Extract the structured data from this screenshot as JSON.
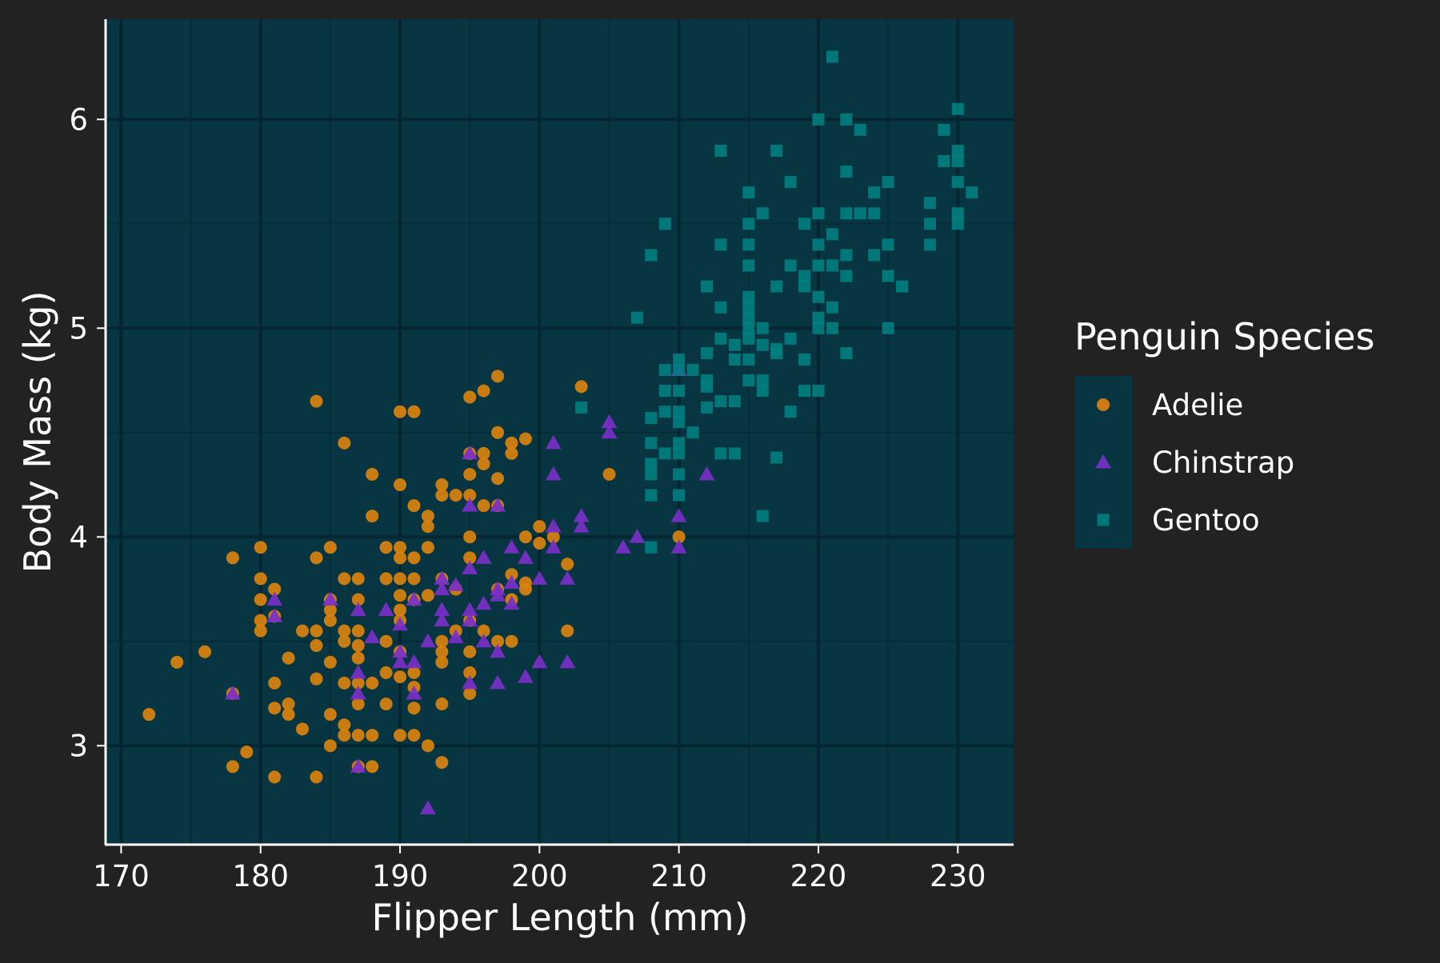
{
  "chart_data": {
    "type": "scatter",
    "xlabel": "Flipper Length (mm)",
    "ylabel": "Body Mass (kg)",
    "xlim": [
      169,
      234
    ],
    "ylim": [
      2.53,
      6.48
    ],
    "x_ticks": [
      170,
      180,
      190,
      200,
      210,
      220,
      230
    ],
    "y_ticks": [
      3,
      4,
      5,
      6
    ],
    "grid": true,
    "legend": {
      "title": "Penguin Species",
      "position": "right"
    },
    "colors": {
      "background": "#222222",
      "panel": "#073642",
      "grid_major": "#042630",
      "grid_minor": "#052c37",
      "axis": "#ffffff"
    },
    "series": [
      {
        "name": "Adelie",
        "marker": "circle",
        "color": "#d9820d",
        "points": [
          [
            172,
            3.15
          ],
          [
            174,
            3.4
          ],
          [
            176,
            3.45
          ],
          [
            178,
            3.9
          ],
          [
            178,
            2.9
          ],
          [
            178,
            3.25
          ],
          [
            179,
            2.97
          ],
          [
            180,
            3.95
          ],
          [
            180,
            3.8
          ],
          [
            180,
            3.7
          ],
          [
            180,
            3.6
          ],
          [
            180,
            3.55
          ],
          [
            181,
            3.75
          ],
          [
            181,
            3.62
          ],
          [
            181,
            3.3
          ],
          [
            181,
            3.18
          ],
          [
            181,
            2.85
          ],
          [
            182,
            3.42
          ],
          [
            182,
            3.2
          ],
          [
            182,
            3.15
          ],
          [
            183,
            3.55
          ],
          [
            183,
            3.08
          ],
          [
            184,
            4.65
          ],
          [
            184,
            3.9
          ],
          [
            184,
            3.55
          ],
          [
            184,
            3.48
          ],
          [
            184,
            3.32
          ],
          [
            184,
            2.85
          ],
          [
            185,
            3.95
          ],
          [
            185,
            3.7
          ],
          [
            185,
            3.65
          ],
          [
            185,
            3.6
          ],
          [
            185,
            3.4
          ],
          [
            185,
            3.15
          ],
          [
            185,
            3.0
          ],
          [
            186,
            4.45
          ],
          [
            186,
            3.8
          ],
          [
            186,
            3.55
          ],
          [
            186,
            3.5
          ],
          [
            186,
            3.3
          ],
          [
            186,
            3.1
          ],
          [
            186,
            3.05
          ],
          [
            187,
            3.8
          ],
          [
            187,
            3.7
          ],
          [
            187,
            3.55
          ],
          [
            187,
            3.48
          ],
          [
            187,
            3.42
          ],
          [
            187,
            3.3
          ],
          [
            187,
            3.2
          ],
          [
            187,
            3.05
          ],
          [
            187,
            2.9
          ],
          [
            188,
            4.3
          ],
          [
            188,
            4.1
          ],
          [
            188,
            3.3
          ],
          [
            188,
            3.05
          ],
          [
            188,
            2.9
          ],
          [
            189,
            3.95
          ],
          [
            189,
            3.8
          ],
          [
            189,
            3.5
          ],
          [
            189,
            3.35
          ],
          [
            189,
            3.2
          ],
          [
            190,
            4.6
          ],
          [
            190,
            4.25
          ],
          [
            190,
            3.95
          ],
          [
            190,
            3.9
          ],
          [
            190,
            3.8
          ],
          [
            190,
            3.72
          ],
          [
            190,
            3.65
          ],
          [
            190,
            3.6
          ],
          [
            190,
            3.45
          ],
          [
            190,
            3.33
          ],
          [
            190,
            3.05
          ],
          [
            191,
            4.6
          ],
          [
            191,
            4.15
          ],
          [
            191,
            3.9
          ],
          [
            191,
            3.8
          ],
          [
            191,
            3.7
          ],
          [
            191,
            3.35
          ],
          [
            191,
            3.28
          ],
          [
            191,
            3.18
          ],
          [
            191,
            3.05
          ],
          [
            192,
            4.1
          ],
          [
            192,
            4.05
          ],
          [
            192,
            3.95
          ],
          [
            192,
            3.72
          ],
          [
            192,
            3.0
          ],
          [
            193,
            4.25
          ],
          [
            193,
            4.2
          ],
          [
            193,
            3.8
          ],
          [
            193,
            3.5
          ],
          [
            193,
            3.45
          ],
          [
            193,
            3.4
          ],
          [
            193,
            3.2
          ],
          [
            193,
            2.92
          ],
          [
            194,
            4.2
          ],
          [
            194,
            3.75
          ],
          [
            194,
            3.55
          ],
          [
            195,
            4.67
          ],
          [
            195,
            4.4
          ],
          [
            195,
            4.3
          ],
          [
            195,
            4.2
          ],
          [
            195,
            4.0
          ],
          [
            195,
            3.9
          ],
          [
            195,
            3.6
          ],
          [
            195,
            3.45
          ],
          [
            195,
            3.35
          ],
          [
            195,
            3.25
          ],
          [
            196,
            4.7
          ],
          [
            196,
            4.4
          ],
          [
            196,
            4.35
          ],
          [
            196,
            4.15
          ],
          [
            196,
            3.55
          ],
          [
            197,
            4.77
          ],
          [
            197,
            4.5
          ],
          [
            197,
            4.28
          ],
          [
            197,
            4.15
          ],
          [
            197,
            3.75
          ],
          [
            197,
            3.5
          ],
          [
            198,
            4.45
          ],
          [
            198,
            4.4
          ],
          [
            198,
            3.82
          ],
          [
            198,
            3.7
          ],
          [
            198,
            3.5
          ],
          [
            199,
            4.47
          ],
          [
            199,
            4.0
          ],
          [
            199,
            3.78
          ],
          [
            199,
            3.75
          ],
          [
            200,
            4.05
          ],
          [
            200,
            3.97
          ],
          [
            201,
            4.0
          ],
          [
            202,
            3.87
          ],
          [
            202,
            3.55
          ],
          [
            203,
            4.72
          ],
          [
            205,
            4.3
          ],
          [
            210,
            4.0
          ]
        ]
      },
      {
        "name": "Chinstrap",
        "marker": "triangle",
        "color": "#7b2fc9",
        "points": [
          [
            178,
            3.25
          ],
          [
            181,
            3.7
          ],
          [
            181,
            3.62
          ],
          [
            185,
            3.7
          ],
          [
            187,
            3.65
          ],
          [
            187,
            3.35
          ],
          [
            187,
            3.25
          ],
          [
            187,
            2.9
          ],
          [
            188,
            3.52
          ],
          [
            189,
            3.65
          ],
          [
            190,
            3.58
          ],
          [
            190,
            3.45
          ],
          [
            190,
            3.4
          ],
          [
            191,
            3.7
          ],
          [
            191,
            3.4
          ],
          [
            191,
            3.25
          ],
          [
            192,
            3.5
          ],
          [
            192,
            2.7
          ],
          [
            193,
            3.8
          ],
          [
            193,
            3.75
          ],
          [
            193,
            3.65
          ],
          [
            193,
            3.6
          ],
          [
            194,
            3.77
          ],
          [
            194,
            3.52
          ],
          [
            195,
            4.4
          ],
          [
            195,
            4.15
          ],
          [
            195,
            3.85
          ],
          [
            195,
            3.65
          ],
          [
            195,
            3.6
          ],
          [
            195,
            3.3
          ],
          [
            196,
            3.9
          ],
          [
            196,
            3.68
          ],
          [
            196,
            3.5
          ],
          [
            197,
            4.15
          ],
          [
            197,
            3.75
          ],
          [
            197,
            3.72
          ],
          [
            197,
            3.45
          ],
          [
            197,
            3.3
          ],
          [
            198,
            3.95
          ],
          [
            198,
            3.78
          ],
          [
            198,
            3.68
          ],
          [
            199,
            3.9
          ],
          [
            199,
            3.33
          ],
          [
            200,
            3.8
          ],
          [
            200,
            3.4
          ],
          [
            201,
            4.45
          ],
          [
            201,
            4.3
          ],
          [
            201,
            4.05
          ],
          [
            201,
            3.95
          ],
          [
            202,
            3.8
          ],
          [
            202,
            3.4
          ],
          [
            203,
            4.1
          ],
          [
            203,
            4.05
          ],
          [
            205,
            4.55
          ],
          [
            205,
            4.5
          ],
          [
            206,
            3.95
          ],
          [
            207,
            4.0
          ],
          [
            210,
            4.8
          ],
          [
            210,
            4.1
          ],
          [
            210,
            3.95
          ],
          [
            212,
            4.3
          ]
        ]
      },
      {
        "name": "Gentoo",
        "marker": "square",
        "color": "#00807f",
        "points": [
          [
            203,
            4.62
          ],
          [
            207,
            5.05
          ],
          [
            208,
            5.35
          ],
          [
            208,
            4.57
          ],
          [
            208,
            4.45
          ],
          [
            208,
            4.35
          ],
          [
            208,
            4.2
          ],
          [
            208,
            3.95
          ],
          [
            208,
            4.3
          ],
          [
            209,
            5.5
          ],
          [
            209,
            4.8
          ],
          [
            209,
            4.7
          ],
          [
            209,
            4.6
          ],
          [
            209,
            4.4
          ],
          [
            210,
            4.85
          ],
          [
            210,
            4.8
          ],
          [
            210,
            4.7
          ],
          [
            210,
            4.6
          ],
          [
            210,
            4.55
          ],
          [
            210,
            4.45
          ],
          [
            210,
            4.4
          ],
          [
            210,
            4.3
          ],
          [
            210,
            4.2
          ],
          [
            211,
            4.8
          ],
          [
            211,
            4.5
          ],
          [
            212,
            5.2
          ],
          [
            212,
            4.88
          ],
          [
            212,
            4.75
          ],
          [
            212,
            4.72
          ],
          [
            212,
            4.62
          ],
          [
            213,
            5.85
          ],
          [
            213,
            5.4
          ],
          [
            213,
            5.1
          ],
          [
            213,
            4.95
          ],
          [
            213,
            4.65
          ],
          [
            213,
            4.4
          ],
          [
            214,
            4.92
          ],
          [
            214,
            4.85
          ],
          [
            214,
            4.65
          ],
          [
            214,
            4.4
          ],
          [
            215,
            5.65
          ],
          [
            215,
            5.5
          ],
          [
            215,
            5.4
          ],
          [
            215,
            5.3
          ],
          [
            215,
            5.15
          ],
          [
            215,
            5.1
          ],
          [
            215,
            5.05
          ],
          [
            215,
            5.0
          ],
          [
            215,
            4.95
          ],
          [
            215,
            4.85
          ],
          [
            215,
            4.75
          ],
          [
            216,
            5.55
          ],
          [
            216,
            5.0
          ],
          [
            216,
            4.92
          ],
          [
            216,
            4.75
          ],
          [
            216,
            4.7
          ],
          [
            216,
            4.1
          ],
          [
            217,
            5.85
          ],
          [
            217,
            5.2
          ],
          [
            217,
            4.9
          ],
          [
            217,
            4.88
          ],
          [
            217,
            4.38
          ],
          [
            218,
            5.7
          ],
          [
            218,
            5.3
          ],
          [
            218,
            4.95
          ],
          [
            218,
            4.6
          ],
          [
            219,
            5.5
          ],
          [
            219,
            5.25
          ],
          [
            219,
            5.2
          ],
          [
            219,
            4.85
          ],
          [
            219,
            4.7
          ],
          [
            220,
            6.0
          ],
          [
            220,
            5.55
          ],
          [
            220,
            5.4
          ],
          [
            220,
            5.3
          ],
          [
            220,
            5.15
          ],
          [
            220,
            5.05
          ],
          [
            220,
            5.0
          ],
          [
            220,
            4.7
          ],
          [
            221,
            6.3
          ],
          [
            221,
            5.45
          ],
          [
            221,
            5.3
          ],
          [
            221,
            5.1
          ],
          [
            221,
            5.0
          ],
          [
            222,
            6.0
          ],
          [
            222,
            5.75
          ],
          [
            222,
            5.55
          ],
          [
            222,
            5.35
          ],
          [
            222,
            5.25
          ],
          [
            222,
            4.88
          ],
          [
            223,
            5.95
          ],
          [
            223,
            5.55
          ],
          [
            224,
            5.65
          ],
          [
            224,
            5.55
          ],
          [
            224,
            5.35
          ],
          [
            225,
            5.7
          ],
          [
            225,
            5.4
          ],
          [
            225,
            5.25
          ],
          [
            225,
            5.0
          ],
          [
            226,
            5.2
          ],
          [
            228,
            5.6
          ],
          [
            228,
            5.5
          ],
          [
            228,
            5.4
          ],
          [
            229,
            5.95
          ],
          [
            229,
            5.8
          ],
          [
            230,
            6.05
          ],
          [
            230,
            5.85
          ],
          [
            230,
            5.8
          ],
          [
            230,
            5.7
          ],
          [
            230,
            5.55
          ],
          [
            230,
            5.5
          ],
          [
            231,
            5.65
          ]
        ]
      }
    ]
  }
}
